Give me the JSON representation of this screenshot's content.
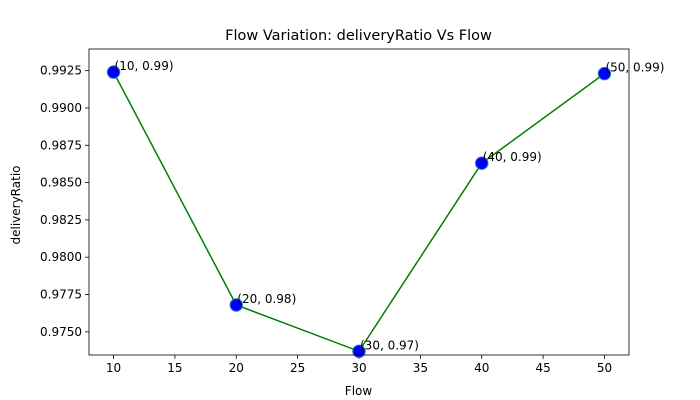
{
  "chart_data": {
    "type": "line",
    "title": "Flow Variation: deliveryRatio Vs Flow",
    "xlabel": "Flow",
    "ylabel": "deliveryRatio",
    "xlim": [
      8,
      52
    ],
    "ylim": [
      0.97345,
      0.99395
    ],
    "x_ticks": [
      10,
      15,
      20,
      25,
      30,
      35,
      40,
      45,
      50
    ],
    "y_ticks": [
      0.975,
      0.9775,
      0.98,
      0.9825,
      0.985,
      0.9875,
      0.99,
      0.9925
    ],
    "x_tick_labels": [
      "10",
      "15",
      "20",
      "25",
      "30",
      "35",
      "40",
      "45",
      "50"
    ],
    "y_tick_labels": [
      "0.9750",
      "0.9775",
      "0.9800",
      "0.9825",
      "0.9850",
      "0.9875",
      "0.9900",
      "0.9925"
    ],
    "grid": false,
    "series": [
      {
        "x": [
          10,
          20,
          30,
          40,
          50
        ],
        "y": [
          0.9924,
          0.9768,
          0.9737,
          0.9863,
          0.9923
        ],
        "line_color": "#008000",
        "marker_color": "#0000ff",
        "marker_edge_color": "#1f77b4",
        "point_labels": [
          "(10, 0.99)",
          "(20, 0.98)",
          "(30, 0.97)",
          "(40, 0.99)",
          "(50, 0.99)"
        ]
      }
    ]
  }
}
